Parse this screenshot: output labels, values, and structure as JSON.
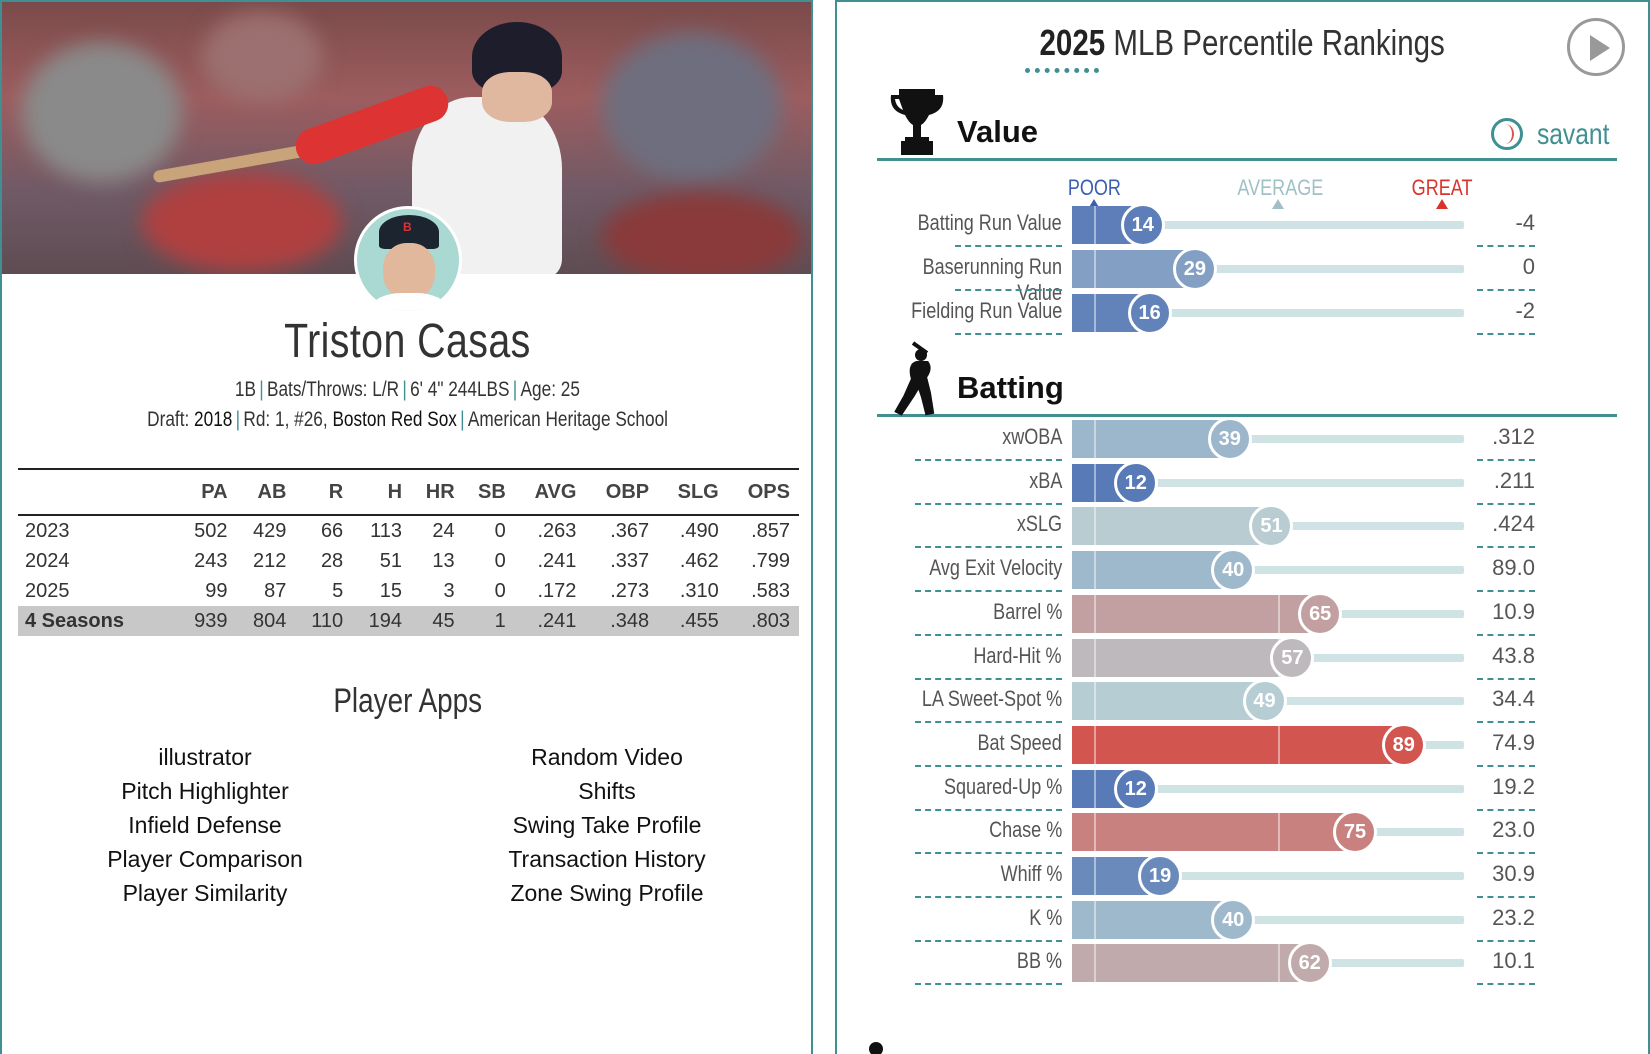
{
  "player": {
    "name": "Triston Casas",
    "position": "1B",
    "bats_throws": "Bats/Throws: L/R",
    "size": "6' 4\" 244LBS",
    "age": "Age: 25",
    "draft_label": "Draft:",
    "draft_year": "2018",
    "draft_round": "Rd: 1, #26,",
    "draft_team": "Boston Red Sox",
    "school": "American Heritage School"
  },
  "stats": {
    "headers": [
      "",
      "PA",
      "AB",
      "R",
      "H",
      "HR",
      "SB",
      "AVG",
      "OBP",
      "SLG",
      "OPS"
    ],
    "rows": [
      [
        "2023",
        "502",
        "429",
        "66",
        "113",
        "24",
        "0",
        ".263",
        ".367",
        ".490",
        ".857"
      ],
      [
        "2024",
        "243",
        "212",
        "28",
        "51",
        "13",
        "0",
        ".241",
        ".337",
        ".462",
        ".799"
      ],
      [
        "2025",
        "99",
        "87",
        "5",
        "15",
        "3",
        "0",
        ".172",
        ".273",
        ".310",
        ".583"
      ]
    ],
    "total": [
      "4 Seasons",
      "939",
      "804",
      "110",
      "194",
      "45",
      "1",
      ".241",
      ".348",
      ".455",
      ".803"
    ]
  },
  "apps": {
    "title": "Player Apps",
    "left": [
      "illustrator",
      "Pitch Highlighter",
      "Infield Defense",
      "Player Comparison",
      "Player Similarity"
    ],
    "right": [
      "Random Video",
      "Shifts",
      "Swing Take Profile",
      "Transaction History",
      "Zone Swing Profile"
    ]
  },
  "rankings": {
    "year": "2025",
    "title": "MLB Percentile Rankings",
    "logo": "savant",
    "scale": {
      "poor": "POOR",
      "average": "AVERAGE",
      "great": "GREAT"
    },
    "sections": [
      {
        "name": "Value",
        "icon": "trophy-icon",
        "metrics": [
          {
            "label": "Batting Run Value",
            "percentile": 14,
            "value": "-4"
          },
          {
            "label": "Baserunning Run Value",
            "percentile": 29,
            "value": "0"
          },
          {
            "label": "Fielding Run Value",
            "percentile": 16,
            "value": "-2"
          }
        ]
      },
      {
        "name": "Batting",
        "icon": "batter-icon",
        "metrics": [
          {
            "label": "xwOBA",
            "percentile": 39,
            "value": ".312"
          },
          {
            "label": "xBA",
            "percentile": 12,
            "value": ".211"
          },
          {
            "label": "xSLG",
            "percentile": 51,
            "value": ".424"
          },
          {
            "label": "Avg Exit Velocity",
            "percentile": 40,
            "value": "89.0"
          },
          {
            "label": "Barrel %",
            "percentile": 65,
            "value": "10.9"
          },
          {
            "label": "Hard-Hit %",
            "percentile": 57,
            "value": "43.8"
          },
          {
            "label": "LA Sweet-Spot %",
            "percentile": 49,
            "value": "34.4"
          },
          {
            "label": "Bat Speed",
            "percentile": 89,
            "value": "74.9"
          },
          {
            "label": "Squared-Up %",
            "percentile": 12,
            "value": "19.2"
          },
          {
            "label": "Chase %",
            "percentile": 75,
            "value": "23.0"
          },
          {
            "label": "Whiff %",
            "percentile": 19,
            "value": "30.9"
          },
          {
            "label": "K %",
            "percentile": 40,
            "value": "23.2"
          },
          {
            "label": "BB %",
            "percentile": 62,
            "value": "10.1"
          }
        ]
      }
    ]
  },
  "colors": {
    "accent": "#3f8f93",
    "poor": "#3a5fae",
    "average": "#b8cfd4",
    "great": "#d9332b"
  }
}
